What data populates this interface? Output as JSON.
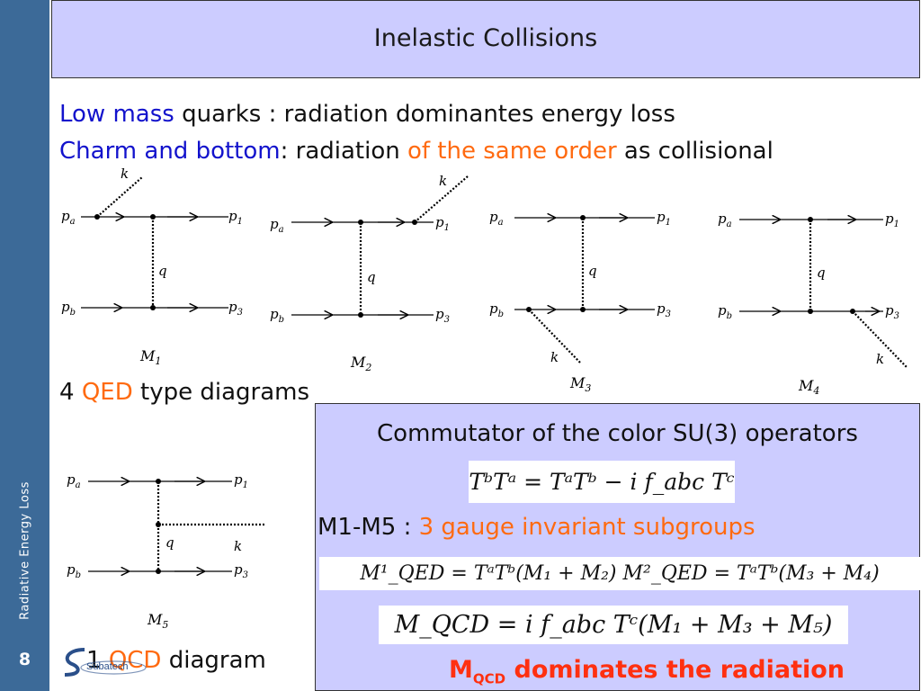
{
  "sidebar": {
    "label": "Radiative Energy Loss",
    "page": "8"
  },
  "title": "Inelastic Collisions",
  "line1": {
    "a": "Low mass",
    "b": " quarks : radiation dominantes energy loss"
  },
  "line2": {
    "a": "Charm and bottom",
    "b": ":  radiation ",
    "c": "of the same order",
    "d": " as collisional"
  },
  "qed_line": {
    "count": "4 ",
    "qed": "QED",
    "rest": " type diagrams"
  },
  "qcd_line": {
    "count": "1 ",
    "qcd": "QCD",
    "rest": " diagram"
  },
  "labels": {
    "pa": "p",
    "pb": "p",
    "p1": "p",
    "p3": "p",
    "sa": "a",
    "sb": "b",
    "s1": "1",
    "s3": "3",
    "k": "k",
    "q": "q",
    "M": "M"
  },
  "diagram_names": [
    "1",
    "2",
    "3",
    "4",
    "5"
  ],
  "box": {
    "title": "Commutator of the color SU(3) operators",
    "commutator": "TᵇTᵃ = TᵃTᵇ − i f_abc Tᶜ",
    "subgroups_prefix": "M1-M5 : ",
    "subgroups_highlight": "3 gauge invariant subgroups",
    "mqed": "M¹_QED = TᵃTᵇ(M₁ + M₂)    M²_QED = TᵃTᵇ(M₃ + M₄)",
    "mqcd": "M_QCD = i f_abc Tᶜ(M₁ + M₃ + M₅)",
    "dominates_m": "M",
    "dominates_sub": "QCD",
    "dominates_rest": "  dominates the radiation"
  },
  "logo": {
    "text": "Subatech"
  },
  "colors": {
    "sidebar": "#3c6a98",
    "title_bg": "#ccccff",
    "blue": "#1212cc",
    "orange": "#ff6a10",
    "red": "#ff3010"
  }
}
